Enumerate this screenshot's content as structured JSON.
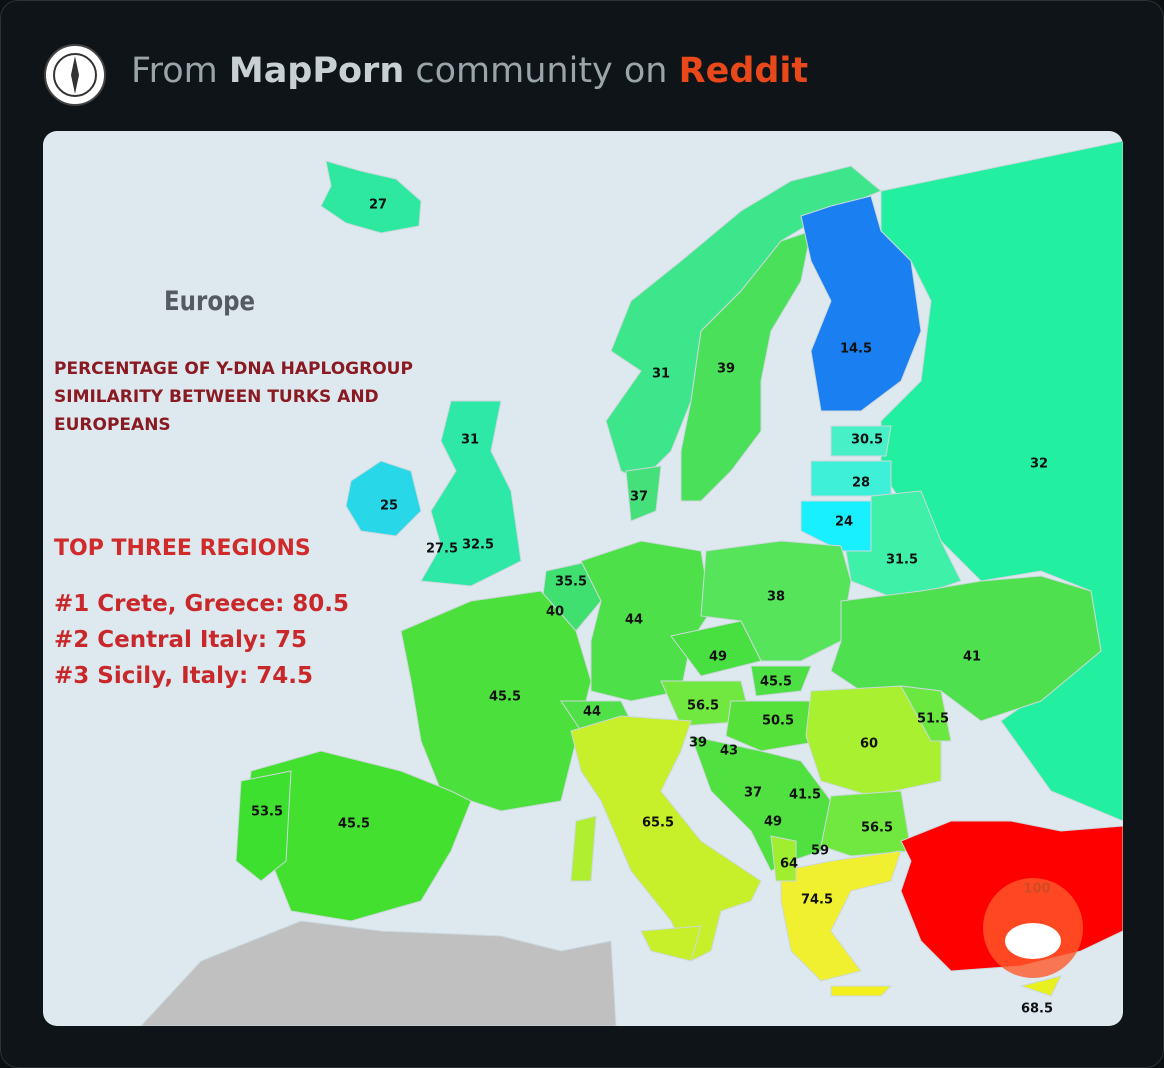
{
  "header": {
    "prefix": "From",
    "community": "MapPorn",
    "middle": "community on",
    "site": "Reddit"
  },
  "map": {
    "title": "Europe",
    "subtitle": "PERCENTAGE OF Y-DNA HAPLOGROUP SIMILARITY BETWEEN TURKS AND EUROPEANS",
    "top_heading": "TOP THREE REGIONS",
    "top_list": [
      "#1 Crete, Greece: 80.5",
      "#2 Central Italy: 75",
      "#3 Sicily, Italy: 74.5"
    ],
    "region_labels": [
      27,
      14.5,
      31,
      39,
      30.5,
      32,
      31,
      28,
      37,
      25,
      24,
      27.5,
      32.5,
      31.5,
      35.5,
      38,
      40,
      44,
      49,
      41,
      45.5,
      45.5,
      56.5,
      51.5,
      44,
      50.5,
      60,
      39,
      43,
      37,
      41.5,
      53.5,
      45.5,
      65.5,
      49,
      56.5,
      59,
      64,
      74.5,
      100,
      68.5
    ]
  }
}
